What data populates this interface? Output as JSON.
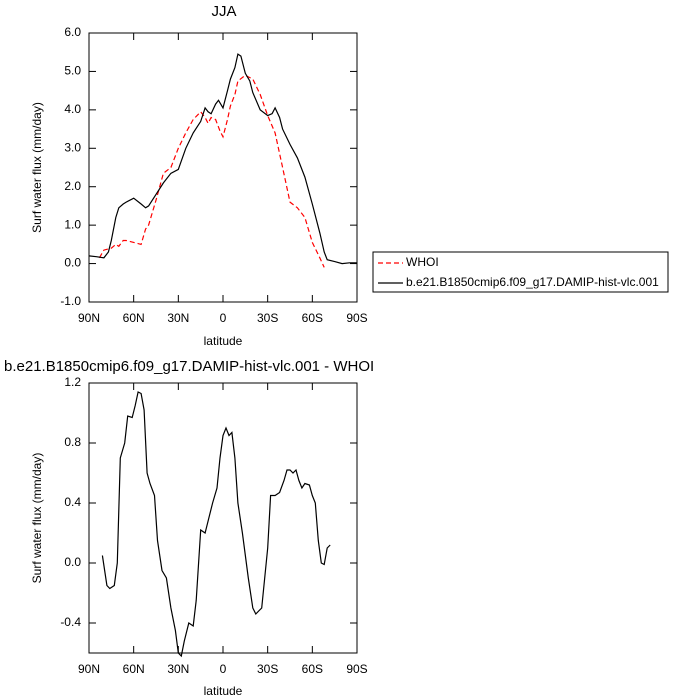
{
  "chart_data": [
    {
      "type": "line",
      "title": "JJA",
      "x_label": "latitude",
      "y_label": "Surf water flux (mm/day)",
      "xlim": [
        90,
        -90
      ],
      "xticks": [
        {
          "value": 90,
          "label": "90N"
        },
        {
          "value": 60,
          "label": "60N"
        },
        {
          "value": 30,
          "label": "30N"
        },
        0,
        {
          "value": -30,
          "label": "30S"
        },
        {
          "value": -60,
          "label": "60S"
        },
        {
          "value": -90,
          "label": "90S"
        }
      ],
      "ylim": [
        -1,
        6
      ],
      "yticks": [
        {
          "value": 6,
          "label": "6.0"
        },
        {
          "value": 5,
          "label": "5.0"
        },
        {
          "value": 4,
          "label": "4.0"
        },
        {
          "value": 3,
          "label": "3.0"
        },
        {
          "value": 2,
          "label": "2.0"
        },
        {
          "value": 1,
          "label": "1.0"
        },
        {
          "value": 0,
          "label": "0.0"
        },
        {
          "value": -1,
          "label": "-1.0"
        }
      ],
      "legend": "right",
      "series": [
        {
          "name": "WHOI",
          "color": "#ff0000",
          "line_style": "dashed",
          "x": [
            83,
            80,
            75,
            72,
            70,
            67,
            65,
            60,
            55,
            52,
            50,
            45,
            40,
            35,
            30,
            25,
            20,
            15,
            12,
            10,
            8,
            5,
            2,
            0,
            -3,
            -5,
            -8,
            -10,
            -15,
            -20,
            -25,
            -30,
            -35,
            -40,
            -45,
            -50,
            -55,
            -60,
            -65,
            -68
          ],
          "values": [
            0.15,
            0.35,
            0.4,
            0.5,
            0.45,
            0.6,
            0.6,
            0.55,
            0.5,
            0.9,
            1.0,
            1.65,
            2.35,
            2.5,
            3.0,
            3.4,
            3.75,
            3.95,
            3.8,
            3.65,
            3.8,
            3.75,
            3.45,
            3.3,
            3.75,
            4.1,
            4.4,
            4.75,
            4.9,
            4.8,
            4.4,
            3.85,
            3.4,
            2.5,
            1.6,
            1.45,
            1.2,
            0.55,
            0.15,
            -0.1
          ]
        },
        {
          "name": "b.e21.B1850cmip6.f09_g17.DAMIP-hist-vlc.001",
          "color": "#000000",
          "line_style": "solid",
          "x": [
            90,
            85,
            80,
            77,
            75,
            72,
            70,
            67,
            65,
            60,
            55,
            52,
            50,
            45,
            40,
            35,
            30,
            25,
            20,
            15,
            12,
            10,
            8,
            5,
            3,
            0,
            -3,
            -5,
            -8,
            -10,
            -12,
            -15,
            -18,
            -20,
            -25,
            -30,
            -33,
            -35,
            -38,
            -40,
            -45,
            -50,
            -55,
            -60,
            -65,
            -68,
            -70,
            -75,
            -80,
            -85,
            -90
          ],
          "values": [
            0.2,
            0.18,
            0.15,
            0.3,
            0.6,
            1.2,
            1.45,
            1.55,
            1.6,
            1.7,
            1.55,
            1.45,
            1.5,
            1.8,
            2.1,
            2.35,
            2.45,
            3.0,
            3.4,
            3.7,
            4.05,
            3.95,
            3.9,
            4.15,
            4.25,
            4.05,
            4.5,
            4.8,
            5.1,
            5.45,
            5.4,
            4.95,
            4.75,
            4.45,
            4.0,
            3.85,
            3.9,
            4.05,
            3.8,
            3.5,
            3.1,
            2.75,
            2.25,
            1.55,
            0.8,
            0.3,
            0.1,
            0.05,
            0.0,
            0.02,
            0.02
          ]
        }
      ]
    },
    {
      "type": "line",
      "title": "b.e21.B1850cmip6.f09_g17.DAMIP-hist-vlc.001 - WHOI",
      "x_label": "latitude",
      "y_label": "Surf water flux (mm/day)",
      "xlim": [
        90,
        -90
      ],
      "xticks": [
        {
          "value": 90,
          "label": "90N"
        },
        {
          "value": 60,
          "label": "60N"
        },
        {
          "value": 30,
          "label": "30N"
        },
        0,
        {
          "value": -30,
          "label": "30S"
        },
        {
          "value": -60,
          "label": "60S"
        },
        {
          "value": -90,
          "label": "90S"
        }
      ],
      "ylim": [
        -0.6,
        1.2
      ],
      "yticks": [
        1.2,
        0.8,
        0.4,
        {
          "value": 0,
          "label": "0.0"
        },
        -0.4
      ],
      "series": [
        {
          "color": "#000000",
          "line_style": "solid",
          "x": [
            81,
            78,
            76,
            73,
            71,
            69,
            66,
            64,
            61,
            59,
            57,
            55,
            53,
            51,
            49,
            46,
            44,
            41,
            38,
            35,
            32,
            30,
            28,
            26,
            23,
            20,
            18,
            15,
            12,
            10,
            7,
            4,
            2,
            0,
            -2,
            -4,
            -6,
            -8,
            -10,
            -13,
            -17,
            -20,
            -22,
            -24,
            -26,
            -30,
            -32,
            -35,
            -38,
            -41,
            -43,
            -45,
            -47,
            -49,
            -51,
            -53,
            -55,
            -58,
            -60,
            -62,
            -64,
            -66,
            -68,
            -70,
            -72
          ],
          "values": [
            0.05,
            -0.15,
            -0.17,
            -0.15,
            0.0,
            0.7,
            0.8,
            0.98,
            0.97,
            1.05,
            1.14,
            1.13,
            1.02,
            0.6,
            0.53,
            0.45,
            0.15,
            -0.05,
            -0.1,
            -0.3,
            -0.45,
            -0.6,
            -0.62,
            -0.52,
            -0.4,
            -0.42,
            -0.25,
            0.22,
            0.2,
            0.28,
            0.4,
            0.5,
            0.7,
            0.85,
            0.9,
            0.85,
            0.87,
            0.7,
            0.4,
            0.2,
            -0.1,
            -0.3,
            -0.34,
            -0.32,
            -0.3,
            0.1,
            0.45,
            0.45,
            0.47,
            0.55,
            0.62,
            0.62,
            0.6,
            0.62,
            0.55,
            0.5,
            0.53,
            0.52,
            0.45,
            0.4,
            0.15,
            0.0,
            -0.01,
            0.1,
            0.12
          ]
        }
      ]
    }
  ]
}
